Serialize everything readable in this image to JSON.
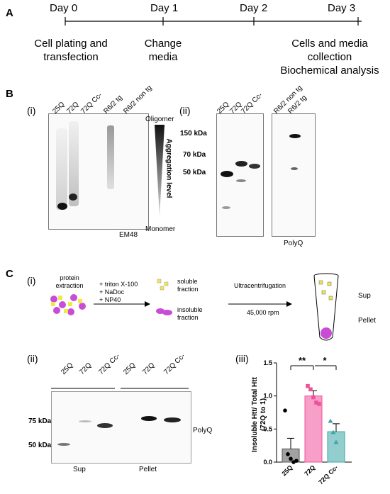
{
  "panelA": {
    "letter": "A",
    "days": [
      "Day 0",
      "Day 1",
      "Day 2",
      "Day 3"
    ],
    "descs": [
      "Cell plating and\ntransfection",
      "Change\nmedia",
      "Cells and media\ncollection\nBiochemical analysis"
    ]
  },
  "panelB": {
    "letter": "B",
    "sub_i": "(i)",
    "sub_ii": "(ii)",
    "lanes_i": [
      "25Q",
      "72Q",
      "72Q Cc-",
      "R6/2 tg",
      "R6/2 non tg"
    ],
    "lanes_ii_left": [
      "25Q",
      "72Q",
      "72Q Cc-"
    ],
    "lanes_ii_right": [
      "R6/2 non tg",
      "R6/2 tg"
    ],
    "oligomer": "Oligomer",
    "monomer": "Monomer",
    "aggregation": "Aggregation level",
    "antibody_i": "EM48",
    "antibody_ii": "PolyQ",
    "mw_ii": [
      "150 kDa",
      "70 kDa",
      "50 kDa"
    ]
  },
  "panelC": {
    "letter": "C",
    "sub_i": "(i)",
    "sub_ii": "(ii)",
    "sub_iii": "(iii)",
    "protein_extraction": "protein\nextraction",
    "detergents": "+ triton X-100\n+ NaDoc\n+ NP40",
    "soluble": "soluble\nfraction",
    "insoluble": "insoluble\nfraction",
    "ultracentrifugation": "Ultracentrifugation",
    "rpm": "45,000 rpm",
    "sup_label": "Sup",
    "pellet_label": "Pellet",
    "lanes_sup": [
      "25Q",
      "72Q",
      "72Q Cc-"
    ],
    "lanes_pellet": [
      "25Q",
      "72Q",
      "72Q Cc-"
    ],
    "mw": [
      "75 kDa",
      "50 kDa"
    ],
    "antibody": "PolyQ",
    "group_sup": "Sup",
    "group_pellet": "Pellet"
  },
  "chart_data": {
    "type": "bar",
    "categories": [
      "25Q",
      "72Q",
      "72Q Cc-"
    ],
    "values": [
      0.2,
      1.0,
      0.46
    ],
    "errors": [
      0.16,
      0.08,
      0.12
    ],
    "colors": [
      "#555555",
      "#f0509a",
      "#3aa6a6"
    ],
    "points": [
      [
        0.78,
        0.12,
        0.05,
        0.0,
        0.02
      ],
      [
        1.15,
        1.1,
        0.98,
        0.9,
        0.88
      ],
      [
        0.62,
        0.45,
        0.3
      ]
    ],
    "ylabel": "Insoluble Htt/ Total Htt\n(72Q to 1)",
    "ylim": [
      0,
      1.5
    ],
    "yticks": [
      "0.0",
      "0.5",
      "1.0",
      "1.5"
    ],
    "significance": [
      "**",
      "*"
    ]
  }
}
